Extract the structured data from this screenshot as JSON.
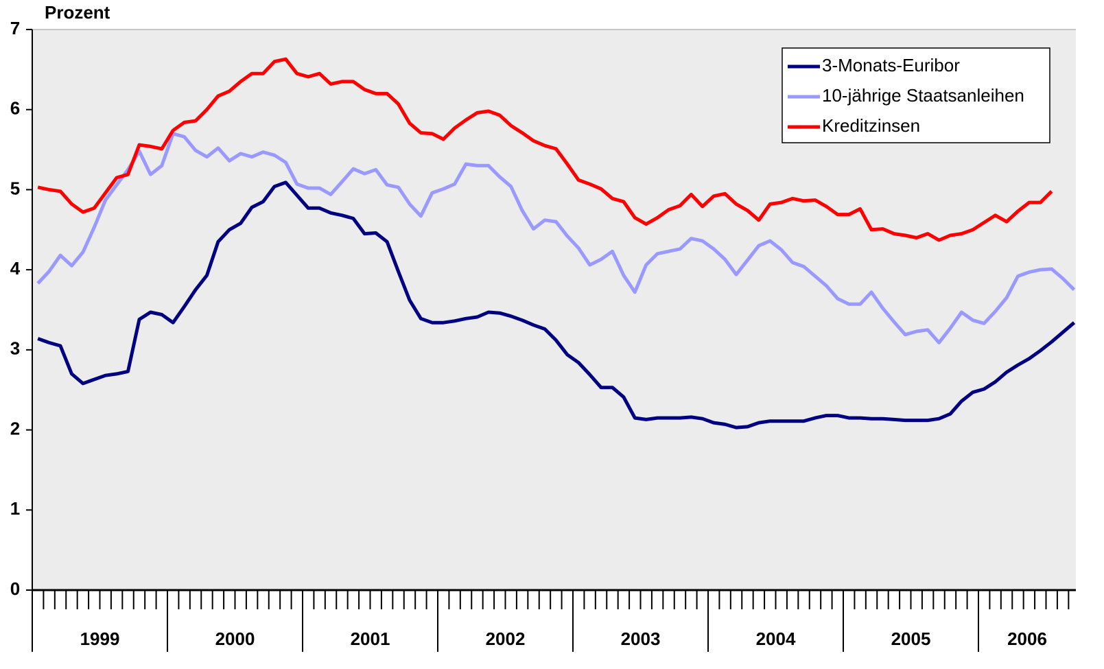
{
  "chart_data": {
    "type": "line",
    "ylabel": "Prozent",
    "categories": [
      "1999",
      "1999",
      "1999",
      "1999",
      "1999",
      "1999",
      "1999",
      "1999",
      "1999",
      "1999",
      "1999",
      "1999",
      "2000",
      "2000",
      "2000",
      "2000",
      "2000",
      "2000",
      "2000",
      "2000",
      "2000",
      "2000",
      "2000",
      "2000",
      "2001",
      "2001",
      "2001",
      "2001",
      "2001",
      "2001",
      "2001",
      "2001",
      "2001",
      "2001",
      "2001",
      "2001",
      "2002",
      "2002",
      "2002",
      "2002",
      "2002",
      "2002",
      "2002",
      "2002",
      "2002",
      "2002",
      "2002",
      "2002",
      "2003",
      "2003",
      "2003",
      "2003",
      "2003",
      "2003",
      "2003",
      "2003",
      "2003",
      "2003",
      "2003",
      "2003",
      "2004",
      "2004",
      "2004",
      "2004",
      "2004",
      "2004",
      "2004",
      "2004",
      "2004",
      "2004",
      "2004",
      "2004",
      "2005",
      "2005",
      "2005",
      "2005",
      "2005",
      "2005",
      "2005",
      "2005",
      "2005",
      "2005",
      "2005",
      "2005",
      "2006",
      "2006",
      "2006",
      "2006",
      "2006",
      "2006",
      "2006",
      "2006",
      "2006"
    ],
    "series": [
      {
        "name": "3-Monats-Euribor",
        "color": "#000080",
        "values": [
          3.14,
          3.09,
          3.05,
          2.7,
          2.58,
          2.63,
          2.68,
          2.7,
          2.73,
          3.38,
          3.47,
          3.44,
          3.34,
          3.54,
          3.75,
          3.93,
          4.35,
          4.5,
          4.58,
          4.78,
          4.85,
          5.04,
          5.09,
          4.93,
          4.77,
          4.77,
          4.71,
          4.68,
          4.64,
          4.45,
          4.46,
          4.35,
          3.98,
          3.62,
          3.39,
          3.34,
          3.34,
          3.36,
          3.39,
          3.41,
          3.47,
          3.46,
          3.42,
          3.37,
          3.31,
          3.26,
          3.12,
          2.94,
          2.84,
          2.69,
          2.53,
          2.53,
          2.41,
          2.15,
          2.13,
          2.15,
          2.15,
          2.15,
          2.16,
          2.14,
          2.09,
          2.07,
          2.03,
          2.04,
          2.09,
          2.11,
          2.11,
          2.11,
          2.11,
          2.15,
          2.18,
          2.18,
          2.15,
          2.15,
          2.14,
          2.14,
          2.13,
          2.12,
          2.12,
          2.12,
          2.14,
          2.2,
          2.36,
          2.47,
          2.51,
          2.6,
          2.72,
          2.81,
          2.89,
          2.99,
          3.1,
          3.22,
          3.34
        ]
      },
      {
        "name": "10-jährige Staatsanleihen",
        "color": "#9999ff",
        "values": [
          3.83,
          3.98,
          4.18,
          4.05,
          4.22,
          4.53,
          4.87,
          5.06,
          5.25,
          5.48,
          5.19,
          5.3,
          5.7,
          5.66,
          5.49,
          5.41,
          5.52,
          5.36,
          5.45,
          5.41,
          5.47,
          5.43,
          5.34,
          5.07,
          5.02,
          5.02,
          4.94,
          5.1,
          5.26,
          5.2,
          5.25,
          5.06,
          5.03,
          4.82,
          4.67,
          4.96,
          5.01,
          5.07,
          5.32,
          5.3,
          5.3,
          5.16,
          5.04,
          4.74,
          4.51,
          4.62,
          4.6,
          4.42,
          4.27,
          4.06,
          4.13,
          4.23,
          3.93,
          3.72,
          4.06,
          4.2,
          4.23,
          4.26,
          4.39,
          4.36,
          4.26,
          4.13,
          3.94,
          4.12,
          4.3,
          4.36,
          4.25,
          4.09,
          4.04,
          3.92,
          3.8,
          3.64,
          3.57,
          3.57,
          3.72,
          3.52,
          3.35,
          3.19,
          3.23,
          3.25,
          3.09,
          3.27,
          3.47,
          3.37,
          3.33,
          3.48,
          3.65,
          3.92,
          3.97,
          4.0,
          4.01,
          3.89,
          3.75
        ]
      },
      {
        "name": "Kreditzinsen",
        "color": "#ff0000",
        "values": [
          5.03,
          5.0,
          4.98,
          4.82,
          4.72,
          4.77,
          4.96,
          5.15,
          5.19,
          5.56,
          5.54,
          5.51,
          5.74,
          5.84,
          5.86,
          6.0,
          6.17,
          6.23,
          6.35,
          6.45,
          6.45,
          6.6,
          6.63,
          6.45,
          6.41,
          6.45,
          6.32,
          6.35,
          6.35,
          6.25,
          6.2,
          6.2,
          6.07,
          5.83,
          5.71,
          5.7,
          5.63,
          5.77,
          5.87,
          5.96,
          5.98,
          5.93,
          5.8,
          5.71,
          5.61,
          5.55,
          5.51,
          5.32,
          5.12,
          5.07,
          5.01,
          4.89,
          4.85,
          4.65,
          4.57,
          4.65,
          4.75,
          4.8,
          4.94,
          4.79,
          4.92,
          4.95,
          4.82,
          4.74,
          4.62,
          4.82,
          4.84,
          4.89,
          4.86,
          4.87,
          4.79,
          4.69,
          4.69,
          4.76,
          4.5,
          4.51,
          4.45,
          4.43,
          4.4,
          4.45,
          4.37,
          4.43,
          4.45,
          4.5,
          4.59,
          4.68,
          4.6,
          4.73,
          4.84,
          4.84,
          4.98,
          null,
          null
        ]
      }
    ],
    "ylim": [
      0,
      7
    ],
    "yticks": [
      0,
      1,
      2,
      3,
      4,
      5,
      6,
      7
    ],
    "legend": "upper right"
  }
}
